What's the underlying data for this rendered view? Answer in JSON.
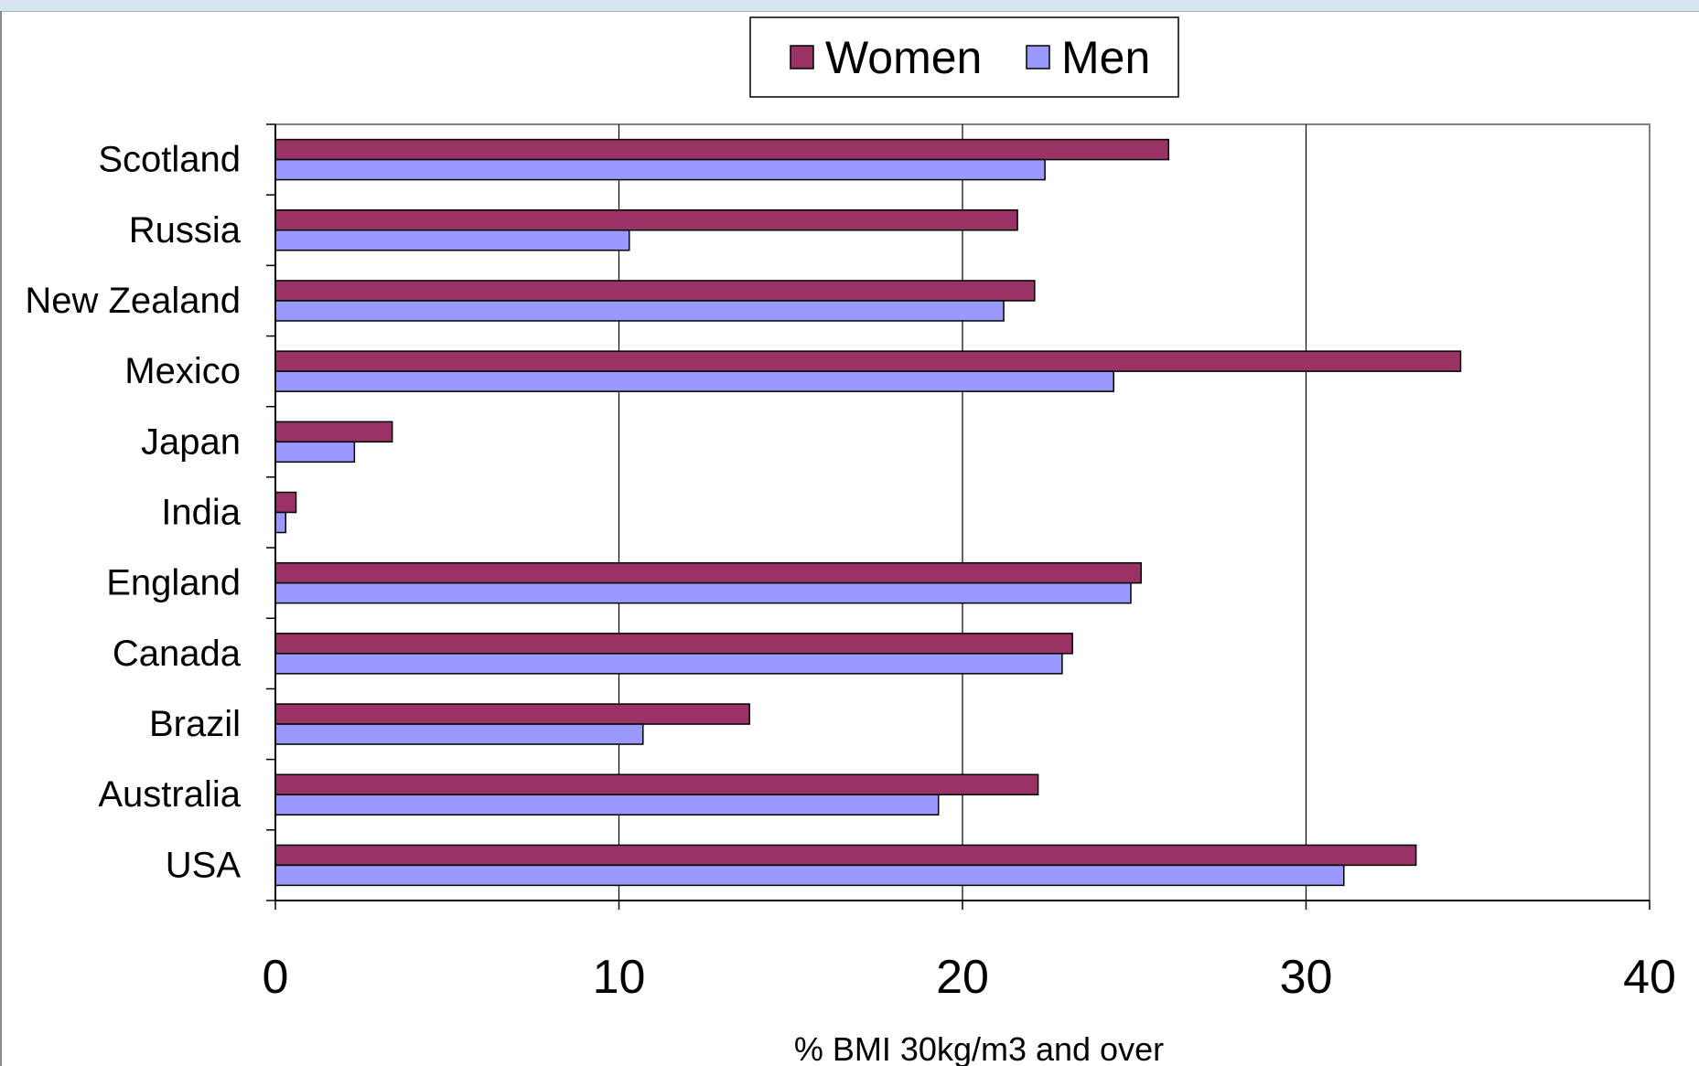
{
  "chart_data": {
    "type": "bar",
    "orientation": "horizontal",
    "categories": [
      "Scotland",
      "Russia",
      "New Zealand",
      "Mexico",
      "Japan",
      "India",
      "England",
      "Canada",
      "Brazil",
      "Australia",
      "USA"
    ],
    "series": [
      {
        "name": "Women",
        "color": "#993366",
        "values": [
          26.0,
          21.6,
          22.1,
          34.5,
          3.4,
          0.6,
          25.2,
          23.2,
          13.8,
          22.2,
          33.2
        ]
      },
      {
        "name": "Men",
        "color": "#9999ff",
        "values": [
          22.4,
          10.3,
          21.2,
          24.4,
          2.3,
          0.3,
          24.9,
          22.9,
          10.7,
          19.3,
          31.1
        ]
      }
    ],
    "xlabel": "% BMI 30kg/m3 and over",
    "ylabel": "",
    "title": "",
    "xlim": [
      0,
      40
    ],
    "xticks": [
      "0",
      "10",
      "20",
      "30",
      "40"
    ],
    "grid": true,
    "legend_position": "top-center"
  }
}
